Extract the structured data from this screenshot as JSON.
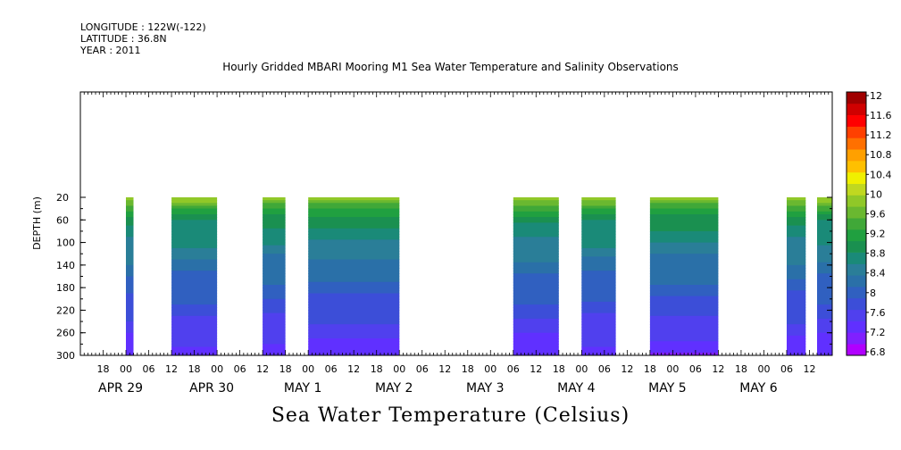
{
  "header": {
    "longitude": "LONGITUDE : 122W(-122)",
    "latitude": "LATITUDE : 36.8N",
    "year": "YEAR : 2011"
  },
  "chart_data": {
    "type": "heatmap",
    "title": "Hourly Gridded MBARI Mooring M1 Sea Water Temperature and Salinity Observations",
    "bottom_title": "Sea Water Temperature (Celsius)",
    "ylabel": "DEPTH (m)",
    "ylim": [
      300,
      10
    ],
    "yticks": [
      20,
      60,
      100,
      140,
      180,
      220,
      260,
      300
    ],
    "x_hour_ticks": [
      "18",
      "00",
      "06",
      "12",
      "18",
      "00",
      "06",
      "12",
      "18",
      "00",
      "06",
      "12",
      "18",
      "00",
      "06",
      "12",
      "18",
      "00",
      "06",
      "12",
      "18",
      "00",
      "06",
      "12",
      "18",
      "00",
      "06",
      "12",
      "18",
      "00",
      "06",
      "12"
    ],
    "x_day_labels": [
      "APR 29",
      "APR 30",
      "MAY  1",
      "MAY  2",
      "MAY  3",
      "MAY  4",
      "MAY  5",
      "MAY  6"
    ],
    "colorbar_levels": [
      6.8,
      7.2,
      7.6,
      8,
      8.4,
      8.8,
      9.2,
      9.6,
      10,
      10.4,
      10.8,
      11.2,
      11.6,
      12
    ],
    "colorbar_colors": [
      "#b000ff",
      "#8020ff",
      "#6030ff",
      "#5040ee",
      "#3c4ed8",
      "#3060c0",
      "#2a70a8",
      "#2a7e98",
      "#1a8a78",
      "#1a9050",
      "#20a040",
      "#40a838",
      "#6ab830",
      "#90c828",
      "#c0d820",
      "#f0f000",
      "#ffc000",
      "#ffa000",
      "#ff7000",
      "#ff4000",
      "#ff0000",
      "#d00000",
      "#a00000"
    ],
    "colorbar_tick_labels": [
      "12",
      "11.6",
      "11.2",
      "10.8",
      "10.4",
      "10",
      "9.6",
      "9.2",
      "8.8",
      "8.4",
      "8",
      "7.6",
      "7.2",
      "6.8"
    ],
    "data_segments_hours": [
      [
        12,
        14
      ],
      [
        24,
        36
      ],
      [
        48,
        54
      ],
      [
        60,
        84
      ],
      [
        114,
        126
      ],
      [
        132,
        141
      ],
      [
        150,
        168
      ],
      [
        186,
        191
      ],
      [
        194,
        198
      ]
    ],
    "depth_profile": [
      {
        "depth": 20,
        "value": 9.9
      },
      {
        "depth": 40,
        "value": 9.3
      },
      {
        "depth": 60,
        "value": 8.9
      },
      {
        "depth": 100,
        "value": 8.6
      },
      {
        "depth": 140,
        "value": 8.3
      },
      {
        "depth": 180,
        "value": 8.05
      },
      {
        "depth": 220,
        "value": 7.8
      },
      {
        "depth": 260,
        "value": 7.55
      },
      {
        "depth": 300,
        "value": 7.3
      }
    ]
  }
}
